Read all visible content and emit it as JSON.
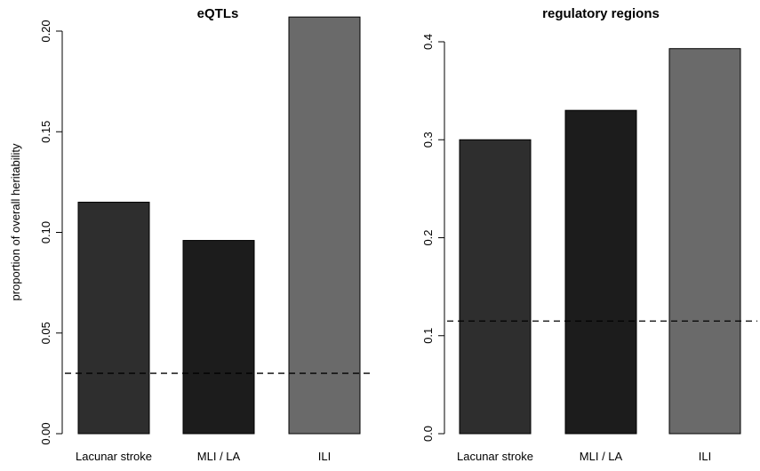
{
  "chart_data": [
    {
      "type": "bar",
      "title": "eQTLs",
      "ylabel": "proportion of overall heritability",
      "categories": [
        "Lacunar stroke",
        "MLI / LA",
        "ILI"
      ],
      "values": [
        0.115,
        0.096,
        0.207
      ],
      "bar_colors": [
        "#2e2e2e",
        "#1c1c1c",
        "#6a6a6a"
      ],
      "ylim": [
        0,
        0.2
      ],
      "yticks": [
        0.0,
        0.05,
        0.1,
        0.15,
        0.2
      ],
      "ytick_labels": [
        "0.00",
        "0.05",
        "0.10",
        "0.15",
        "0.20"
      ],
      "reference_line": {
        "value": 0.03,
        "style": "dashed"
      }
    },
    {
      "type": "bar",
      "title": "regulatory regions",
      "ylabel": "",
      "categories": [
        "Lacunar stroke",
        "MLI / LA",
        "ILI"
      ],
      "values": [
        0.3,
        0.33,
        0.393
      ],
      "bar_colors": [
        "#2e2e2e",
        "#1c1c1c",
        "#6a6a6a"
      ],
      "ylim": [
        0,
        0.4
      ],
      "yticks": [
        0.0,
        0.1,
        0.2,
        0.3,
        0.4
      ],
      "ytick_labels": [
        "0.0",
        "0.1",
        "0.2",
        "0.3",
        "0.4"
      ],
      "reference_line": {
        "value": 0.115,
        "style": "dashed"
      }
    }
  ]
}
